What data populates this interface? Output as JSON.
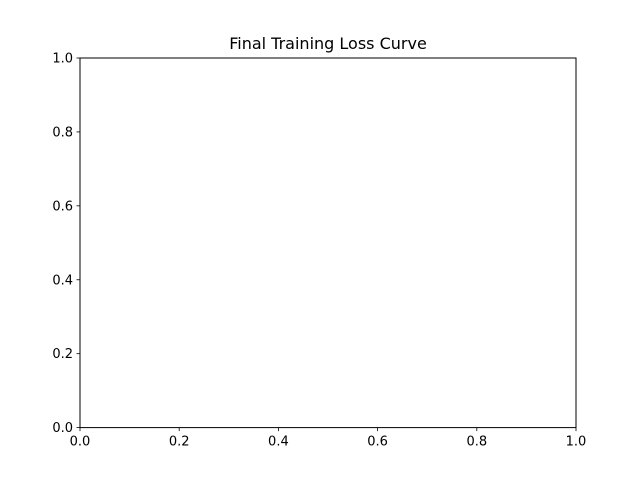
{
  "chart_data": {
    "type": "line",
    "title": "Final Training Loss Curve",
    "xlabel": "",
    "ylabel": "",
    "series": [],
    "xlim": [
      0.0,
      1.0
    ],
    "ylim": [
      0.0,
      1.0
    ],
    "x_ticks": [
      0.0,
      0.2,
      0.4,
      0.6,
      0.8,
      1.0
    ],
    "y_ticks": [
      0.0,
      0.2,
      0.4,
      0.6,
      0.8,
      1.0
    ],
    "x_tick_labels": [
      "0.0",
      "0.2",
      "0.4",
      "0.6",
      "0.8",
      "1.0"
    ],
    "y_tick_labels": [
      "0.0",
      "0.2",
      "0.4",
      "0.6",
      "0.8",
      "1.0"
    ],
    "grid": false,
    "legend": "none"
  }
}
